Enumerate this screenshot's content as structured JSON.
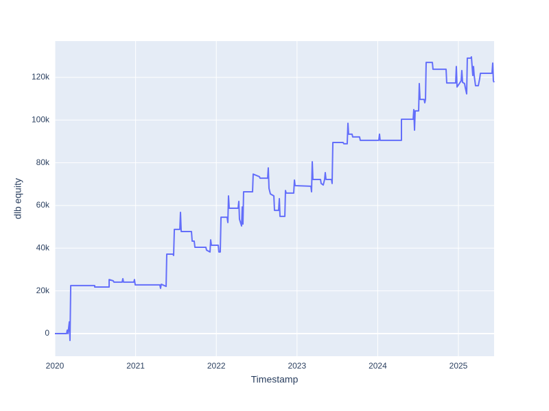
{
  "chart_data": {
    "type": "line",
    "x_label": "Timestamp",
    "y_label": "dlb equity",
    "x": [
      2020.0,
      2020.145,
      2020.153,
      2020.162,
      2020.179,
      2020.187,
      2020.196,
      2020.493,
      2020.493,
      2020.672,
      2020.672,
      2020.723,
      2020.731,
      2020.833,
      2020.842,
      2020.85,
      2020.978,
      2020.986,
      2020.995,
      2021.301,
      2021.309,
      2021.318,
      2021.378,
      2021.386,
      2021.463,
      2021.471,
      2021.48,
      2021.548,
      2021.556,
      2021.565,
      2021.692,
      2021.701,
      2021.726,
      2021.735,
      2021.871,
      2021.879,
      2021.922,
      2021.93,
      2021.939,
      2022.024,
      2022.032,
      2022.049,
      2022.058,
      2022.134,
      2022.143,
      2022.151,
      2022.16,
      2022.27,
      2022.279,
      2022.287,
      2022.313,
      2022.321,
      2022.33,
      2022.338,
      2022.449,
      2022.457,
      2022.534,
      2022.542,
      2022.636,
      2022.644,
      2022.653,
      2022.67,
      2022.713,
      2022.721,
      2022.772,
      2022.781,
      2022.789,
      2022.849,
      2022.857,
      2022.866,
      2022.959,
      2022.968,
      2022.976,
      2023.172,
      2023.18,
      2023.189,
      2023.197,
      2023.291,
      2023.299,
      2023.325,
      2023.342,
      2023.35,
      2023.359,
      2023.427,
      2023.435,
      2023.444,
      2023.571,
      2023.58,
      2023.622,
      2023.631,
      2023.639,
      2023.682,
      2023.69,
      2023.775,
      2023.784,
      2024.013,
      2024.022,
      2024.03,
      2024.294,
      2024.294,
      2024.439,
      2024.447,
      2024.456,
      2024.464,
      2024.507,
      2024.515,
      2024.524,
      2024.575,
      2024.583,
      2024.592,
      2024.6,
      2024.677,
      2024.685,
      2024.847,
      2024.855,
      2024.966,
      2024.974,
      2024.983,
      2025.034,
      2025.042,
      2025.051,
      2025.076,
      2025.085,
      2025.102,
      2025.11,
      2025.153,
      2025.161,
      2025.178,
      2025.187,
      2025.195,
      2025.212,
      2025.246,
      2025.263,
      2025.272,
      2025.416,
      2025.425,
      2025.433,
      2025.442
    ],
    "series": [
      {
        "name": "dlb equity",
        "color": "#636efa",
        "values": [
          0,
          0,
          1600,
          0,
          5500,
          -3200,
          22500,
          22500,
          21800,
          21800,
          25300,
          24700,
          24100,
          24100,
          25700,
          24100,
          24100,
          25300,
          22800,
          22800,
          21200,
          23100,
          22100,
          37200,
          37200,
          36600,
          48800,
          48800,
          56800,
          47800,
          47800,
          43300,
          43300,
          40400,
          40400,
          39100,
          38200,
          43900,
          41400,
          41400,
          38200,
          38200,
          54500,
          54500,
          52000,
          64500,
          58700,
          58700,
          61900,
          53600,
          50400,
          59300,
          51300,
          66400,
          66400,
          74700,
          73500,
          72800,
          72800,
          77600,
          68000,
          65400,
          64500,
          57700,
          57700,
          63200,
          54900,
          54900,
          67000,
          65800,
          65800,
          71900,
          69300,
          69000,
          66400,
          80500,
          72200,
          72200,
          70300,
          69600,
          72200,
          75400,
          72200,
          72200,
          70300,
          89500,
          89500,
          88900,
          88900,
          98500,
          93400,
          93400,
          92100,
          92100,
          90500,
          90500,
          93400,
          90500,
          90500,
          100400,
          100400,
          104900,
          95300,
          104300,
          104300,
          117100,
          109700,
          109700,
          108100,
          109700,
          127000,
          127000,
          123800,
          123800,
          117400,
          117400,
          125100,
          115500,
          118400,
          123200,
          117700,
          117100,
          115200,
          112300,
          129000,
          129000,
          129600,
          120900,
          125100,
          120900,
          116100,
          116100,
          119300,
          121900,
          121900,
          126700,
          118400,
          117700
        ]
      }
    ],
    "xlim": [
      2020,
      2025.442
    ],
    "xticks": [
      2020,
      2021,
      2022,
      2023,
      2024,
      2025
    ],
    "ylim": [
      -10600,
      137000
    ],
    "yticks": [
      0,
      {
        "value": 20000,
        "label": "20k"
      },
      {
        "value": 40000,
        "label": "40k"
      },
      {
        "value": 60000,
        "label": "60k"
      },
      {
        "value": 80000,
        "label": "80k"
      },
      {
        "value": 100000,
        "label": "100k"
      },
      {
        "value": 120000,
        "label": "120k"
      }
    ],
    "grid": true
  }
}
